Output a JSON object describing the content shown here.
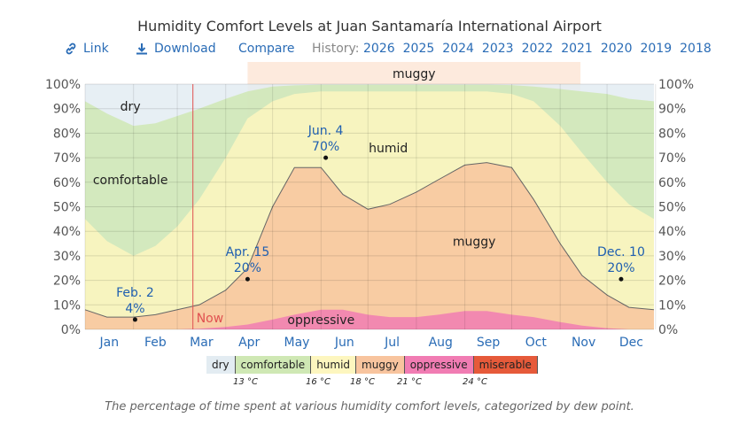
{
  "title": "Humidity Comfort Levels at Juan Santamaría International Airport",
  "toolbar": {
    "link_label": "Link",
    "download_label": "Download",
    "compare_label": "Compare",
    "history_label": "History:",
    "years": [
      "2026",
      "2025",
      "2024",
      "2023",
      "2022",
      "2021",
      "2020",
      "2019",
      "2018"
    ],
    "link_icon": "link-icon",
    "download_icon": "download-icon"
  },
  "caption": "The percentage of time spent at various humidity comfort levels, categorized by dew point.",
  "legend": {
    "items": [
      {
        "label": "dry",
        "color": "#e3ecf2"
      },
      {
        "label": "comfortable",
        "color": "#cfe8b4"
      },
      {
        "label": "humid",
        "color": "#fdf6bf"
      },
      {
        "label": "muggy",
        "color": "#f8c49e"
      },
      {
        "label": "oppressive",
        "color": "#f17cb3"
      },
      {
        "label": "miserable",
        "color": "#e65a3a"
      }
    ],
    "thresholds": [
      "13 °C",
      "16 °C",
      "18 °C",
      "21 °C",
      "24 °C"
    ]
  },
  "chart_data": {
    "type": "area",
    "title": "Humidity Comfort Levels at Juan Santamaría International Airport",
    "x_axis": {
      "type": "day-of-year",
      "labels": [
        "Jan",
        "Feb",
        "Mar",
        "Apr",
        "May",
        "Jun",
        "Jul",
        "Aug",
        "Sep",
        "Oct",
        "Nov",
        "Dec"
      ]
    },
    "y_axis": {
      "min": 0,
      "max": 100,
      "unit": "%",
      "ticks": [
        "0%",
        "10%",
        "20%",
        "30%",
        "40%",
        "50%",
        "60%",
        "70%",
        "80%",
        "90%",
        "100%"
      ]
    },
    "grid": true,
    "x": [
      1,
      15,
      32,
      46,
      60,
      74,
      91,
      105,
      121,
      135,
      152,
      166,
      182,
      196,
      213,
      227,
      244,
      258,
      274,
      288,
      305,
      319,
      335,
      349,
      365
    ],
    "series": [
      {
        "name": "oppressive",
        "color": "#f17cb3",
        "values": [
          0,
          0,
          0,
          0,
          0,
          0.3,
          1,
          2,
          4,
          6,
          8,
          8,
          6,
          5,
          5,
          6,
          7.5,
          7.5,
          6,
          5,
          3,
          1.5,
          0.5,
          0,
          0
        ]
      },
      {
        "name": "muggy",
        "color": "#f8c49e",
        "values": [
          8,
          5,
          5,
          6,
          8,
          10,
          16,
          25,
          50,
          66,
          66,
          55,
          49,
          51,
          56,
          61,
          67,
          68,
          66,
          53,
          35,
          22,
          14,
          9,
          8
        ]
      },
      {
        "name": "humid",
        "color": "#fdf6bf",
        "values": [
          45,
          36,
          30,
          34,
          42,
          53,
          70,
          86,
          93,
          96,
          97,
          97,
          97,
          97,
          97,
          97,
          97,
          97,
          96,
          93,
          83,
          72,
          60,
          51,
          45
        ]
      },
      {
        "name": "comfortable",
        "color": "#cfe8b4",
        "values": [
          93,
          88,
          83,
          84,
          87,
          90,
          94,
          97,
          99,
          99.5,
          99.8,
          99.8,
          99.8,
          99.8,
          99.8,
          99.8,
          99.8,
          99.8,
          99.6,
          99,
          98,
          97,
          96,
          94,
          93
        ]
      },
      {
        "name": "dry",
        "color": "#e3ecf2",
        "values": [
          100,
          100,
          100,
          100,
          100,
          100,
          100,
          100,
          100,
          100,
          100,
          100,
          100,
          100,
          100,
          100,
          100,
          100,
          100,
          100,
          100,
          100,
          100,
          100,
          100
        ]
      }
    ],
    "area_labels": [
      {
        "text": "dry",
        "x": 30,
        "y": 91
      },
      {
        "text": "comfortable",
        "x": 30,
        "y": 61
      },
      {
        "text": "humid",
        "x": 195,
        "y": 74
      },
      {
        "text": "muggy",
        "x": 250,
        "y": 36
      },
      {
        "text": "oppressive",
        "x": 152,
        "y": 4
      }
    ],
    "annotations": [
      {
        "date": "Feb. 2",
        "value": "4%",
        "x": 33,
        "y": 4
      },
      {
        "date": "Apr. 15",
        "value": "20%",
        "x": 105,
        "y": 20.5
      },
      {
        "date": "Jun. 4",
        "value": "70%",
        "x": 155,
        "y": 70
      },
      {
        "date": "Dec. 10",
        "value": "20%",
        "x": 344,
        "y": 20.5
      }
    ],
    "now_marker": {
      "label": "Now",
      "x": 70,
      "color": "#e05050"
    },
    "highlight_band": {
      "label": "muggy",
      "x_start": 105,
      "x_end": 318,
      "color": "#f8c49e"
    }
  }
}
